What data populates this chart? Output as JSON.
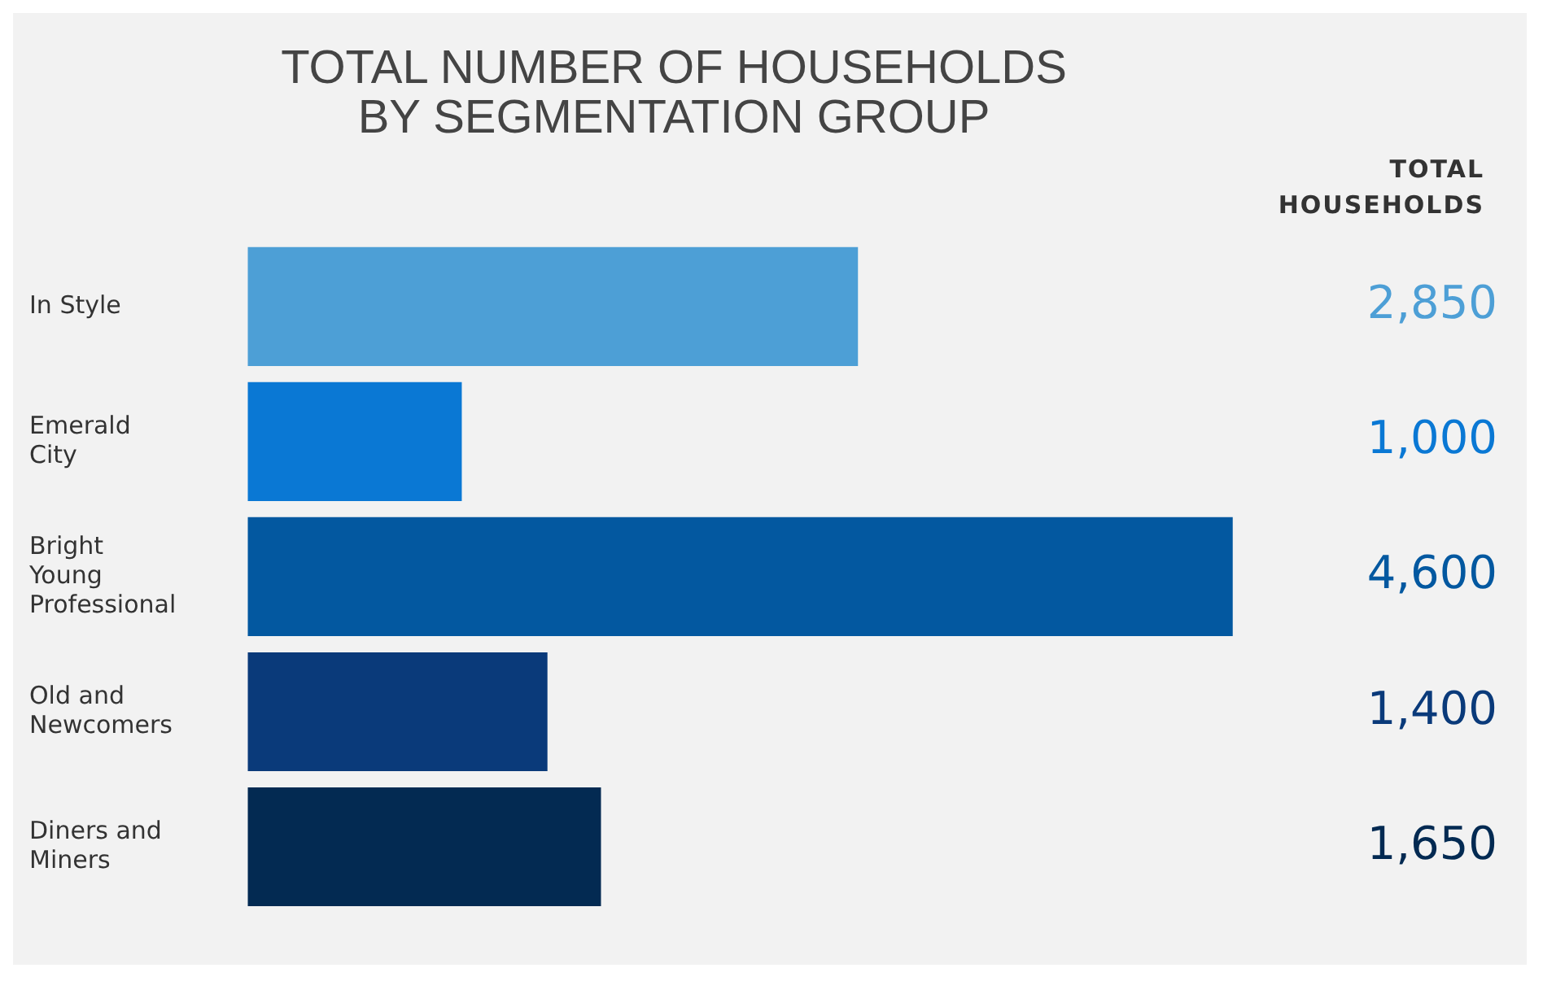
{
  "chart_data": {
    "type": "bar",
    "orientation": "horizontal",
    "title": "TOTAL NUMBER OF HOUSEHOLDS BY SEGMENTATION GROUP",
    "categories": [
      "In Style",
      "Emerald City",
      "Bright Young Professional",
      "Old and Newcomers",
      "Diners and Miners"
    ],
    "values": [
      2850,
      1000,
      4600,
      1400,
      1650
    ],
    "value_labels": [
      "2,850",
      "1,000",
      "4,600",
      "1,400",
      "1,650"
    ],
    "colors": [
      "#4d9fd6",
      "#0a78d4",
      "#0358a0",
      "#0a3a7a",
      "#032a52"
    ],
    "annotations": [
      "TOTAL HOUSEHOLDS"
    ],
    "grid": false,
    "legend": false
  }
}
